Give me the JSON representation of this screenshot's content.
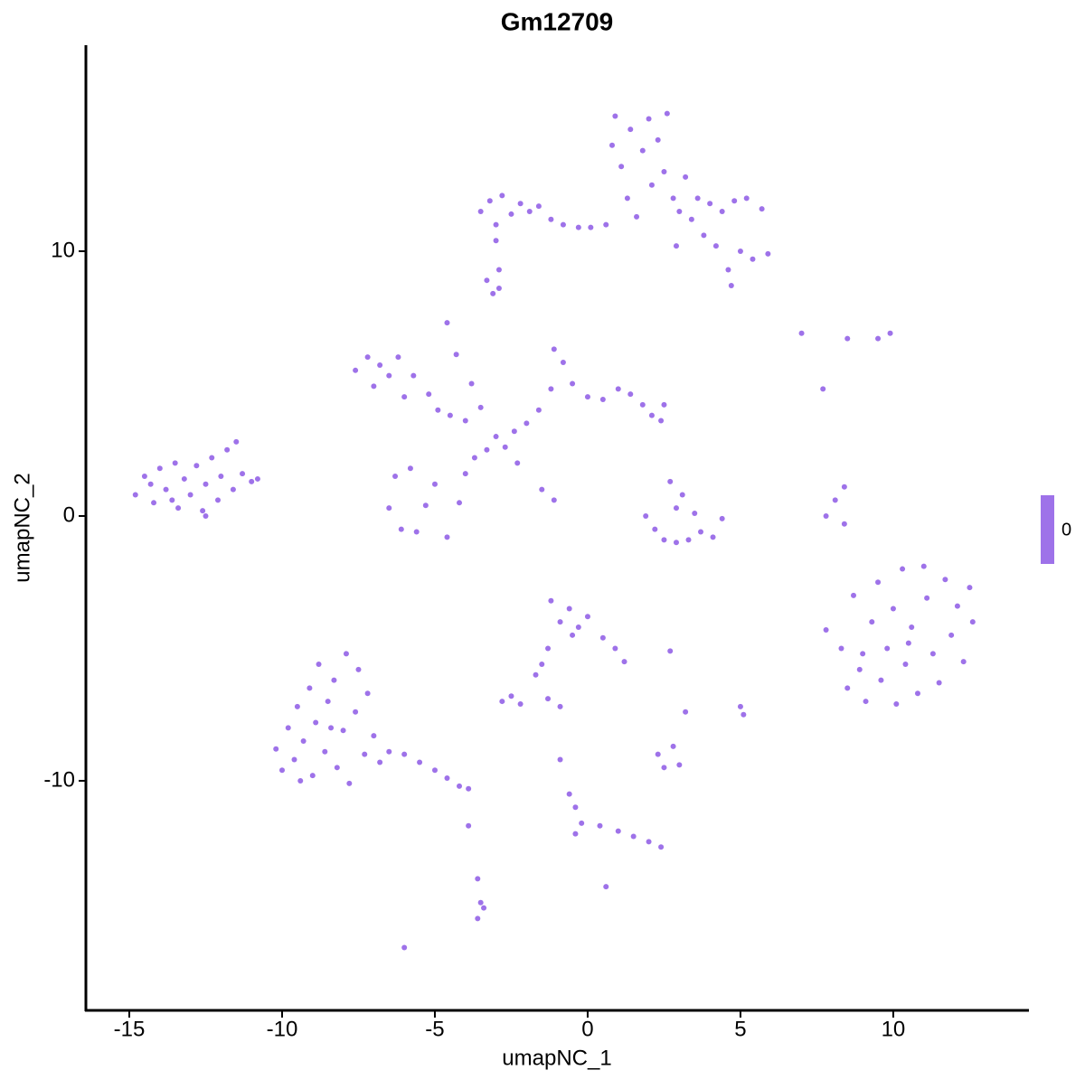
{
  "chart_data": {
    "type": "scatter",
    "title": "Gm12709",
    "x_label": "umapNC_1",
    "y_label": "umapNC_2",
    "color": "#9e72e9",
    "xlim": [
      -16.42,
      14.44
    ],
    "ylim": [
      -18.67,
      17.78
    ],
    "xticks": [
      -15,
      -10,
      -5,
      0,
      5,
      10
    ],
    "yticks": [
      -10,
      0,
      10
    ],
    "colorbar": {
      "ticks": [
        0
      ]
    },
    "x": [
      -14.8,
      -14.5,
      -14.2,
      -14,
      -13.8,
      -13.5,
      -13.4,
      -13.2,
      -13,
      -12.8,
      -12.6,
      -12.5,
      -12.3,
      -12.1,
      -12,
      -11.8,
      -11.6,
      -11.5,
      -11.3,
      -11,
      -10.8,
      -12.5,
      -13.6,
      -14.3,
      -10.2,
      -10,
      -9.8,
      -9.6,
      -9.5,
      -9.3,
      -9.1,
      -9,
      -8.9,
      -8.8,
      -8.6,
      -8.5,
      -8.3,
      -8.2,
      -8,
      -7.9,
      -7.8,
      -7.6,
      -7.5,
      -7.3,
      -7.2,
      -7,
      -6.8,
      -6.5,
      -6,
      -5.5,
      -5,
      -4.6,
      -4.2,
      -3.9,
      -9.4,
      -8.4,
      7.8,
      8.3,
      8.5,
      8.7,
      8.9,
      9.1,
      9.3,
      9.5,
      9.6,
      9.8,
      10,
      10.1,
      10.3,
      10.4,
      10.6,
      10.8,
      11,
      11.1,
      11.3,
      11.5,
      11.7,
      11.9,
      12.1,
      12.3,
      12.5,
      12.6,
      10.5,
      9,
      -3.5,
      -3.2,
      -3,
      -2.8,
      -2.5,
      -2.2,
      -1.9,
      -1.6,
      -1.2,
      -0.8,
      -0.3,
      0.1,
      0.6,
      0.8,
      0.9,
      1.1,
      1.3,
      1.4,
      1.6,
      1.8,
      2,
      2.1,
      2.3,
      2.5,
      2.6,
      2.8,
      3,
      3.2,
      3.4,
      3.6,
      3.8,
      4,
      4.2,
      4.4,
      4.6,
      4.8,
      5,
      5.2,
      5.4,
      5.7,
      5.9,
      4.7,
      2.9,
      -3,
      -2.9,
      -3.1,
      -7.6,
      -7.2,
      -7,
      -6.8,
      -6.5,
      -6.2,
      -6,
      -5.7,
      -5.2,
      -4.9,
      -4.5,
      -4,
      -4.6,
      -4.3,
      -3.8,
      -3.5,
      -3,
      -2.7,
      -2.4,
      -2,
      -1.6,
      -1.2,
      -1.1,
      -0.8,
      -0.5,
      0,
      0.5,
      1,
      1.4,
      1.8,
      2.1,
      2.4,
      2.5,
      -6.3,
      -6.5,
      -6.1,
      -5.6,
      -5.3,
      -5,
      -4.6,
      -4.2,
      -4,
      -3.7,
      -3.3,
      -2.3,
      -1.5,
      -1.1,
      -5.8,
      1.9,
      2.2,
      2.5,
      2.9,
      3.3,
      3.7,
      4.1,
      4.4,
      2.7,
      3.1,
      3.5,
      2.9,
      -2.9,
      7,
      8.5,
      9.5,
      9.9,
      7.7,
      7.8,
      8.1,
      8.4,
      8.4,
      -1.2,
      -0.9,
      -0.6,
      -0.3,
      0,
      -0.5,
      0.5,
      0.9,
      1.2,
      -1.3,
      -1.5,
      -1.7,
      -2.5,
      -2.8,
      -2.2,
      -1.3,
      -0.9,
      2.7,
      5,
      5.1,
      -0.9,
      -0.6,
      -0.4,
      -0.2,
      -0.4,
      0.4,
      1,
      1.5,
      2,
      2.4,
      2.3,
      2.5,
      2.8,
      3,
      3.2,
      -3.9,
      -3.6,
      -3.5,
      -3.6,
      -3.4,
      0.6,
      -6,
      -3.3
    ],
    "y": [
      0.8,
      1.5,
      0.5,
      1.8,
      1,
      2,
      0.3,
      1.4,
      0.8,
      1.9,
      0.2,
      1.2,
      2.2,
      0.6,
      1.5,
      2.5,
      1,
      2.8,
      1.6,
      1.3,
      1.4,
      0,
      0.6,
      1.2,
      -8.8,
      -9.6,
      -8,
      -9.2,
      -7.2,
      -8.5,
      -6.5,
      -9.8,
      -7.8,
      -5.6,
      -8.9,
      -7,
      -6.2,
      -9.5,
      -8.1,
      -5.2,
      -10.1,
      -7.4,
      -5.8,
      -9,
      -6.7,
      -8.3,
      -9.3,
      -8.9,
      -9,
      -9.3,
      -9.6,
      -9.9,
      -10.2,
      -10.3,
      -10,
      -8,
      -4.3,
      -5,
      -6.5,
      -3,
      -5.8,
      -7,
      -4,
      -2.5,
      -6.2,
      -5,
      -3.5,
      -7.1,
      -2,
      -5.6,
      -4.2,
      -6.7,
      -1.9,
      -3.1,
      -5.2,
      -6.3,
      -2.4,
      -4.5,
      -3.4,
      -5.5,
      -2.7,
      -4,
      -4.8,
      -5.2,
      11.5,
      11.9,
      11,
      12.1,
      11.4,
      11.8,
      11.5,
      11.7,
      11.2,
      11,
      10.9,
      10.9,
      11,
      14,
      15.1,
      13.2,
      12,
      14.6,
      11.3,
      13.8,
      15,
      12.5,
      14.2,
      13,
      15.2,
      12,
      11.5,
      12.8,
      11.2,
      12,
      10.6,
      11.8,
      10.2,
      11.5,
      9.3,
      11.9,
      10,
      12,
      9.7,
      11.6,
      9.9,
      8.7,
      10.2,
      10.4,
      8.6,
      8.4,
      5.5,
      6,
      4.9,
      5.7,
      5.3,
      6,
      4.5,
      5.3,
      4.6,
      4,
      3.8,
      3.6,
      7.3,
      6.1,
      5,
      4.1,
      3,
      2.6,
      3.2,
      3.5,
      4,
      4.8,
      6.3,
      5.8,
      5,
      4.5,
      4.4,
      4.8,
      4.6,
      4.2,
      3.8,
      3.6,
      4.2,
      1.5,
      0.3,
      -0.5,
      -0.6,
      0.4,
      1.2,
      -0.8,
      0.5,
      1.6,
      2.2,
      2.5,
      2,
      1,
      0.6,
      1.8,
      0,
      -0.5,
      -0.9,
      -1,
      -0.9,
      -0.6,
      -0.8,
      -0.1,
      1.3,
      0.8,
      0.1,
      0.3,
      9.3,
      6.9,
      6.7,
      6.7,
      6.9,
      4.8,
      0,
      0.6,
      1.1,
      -0.3,
      -3.2,
      -4,
      -3.5,
      -4.2,
      -3.8,
      -4.5,
      -4.6,
      -5,
      -5.5,
      -5,
      -5.6,
      -6,
      -6.8,
      -7,
      -7.1,
      -6.9,
      -7.2,
      -5.1,
      -7.2,
      -7.5,
      -9.2,
      -10.5,
      -11,
      -11.6,
      -12,
      -11.7,
      -11.9,
      -12.1,
      -12.3,
      -12.5,
      -9,
      -9.5,
      -8.7,
      -9.4,
      -7.4,
      -11.7,
      -13.7,
      -14.6,
      -15.2,
      -14.8,
      -14,
      -16.3,
      8.9
    ]
  }
}
